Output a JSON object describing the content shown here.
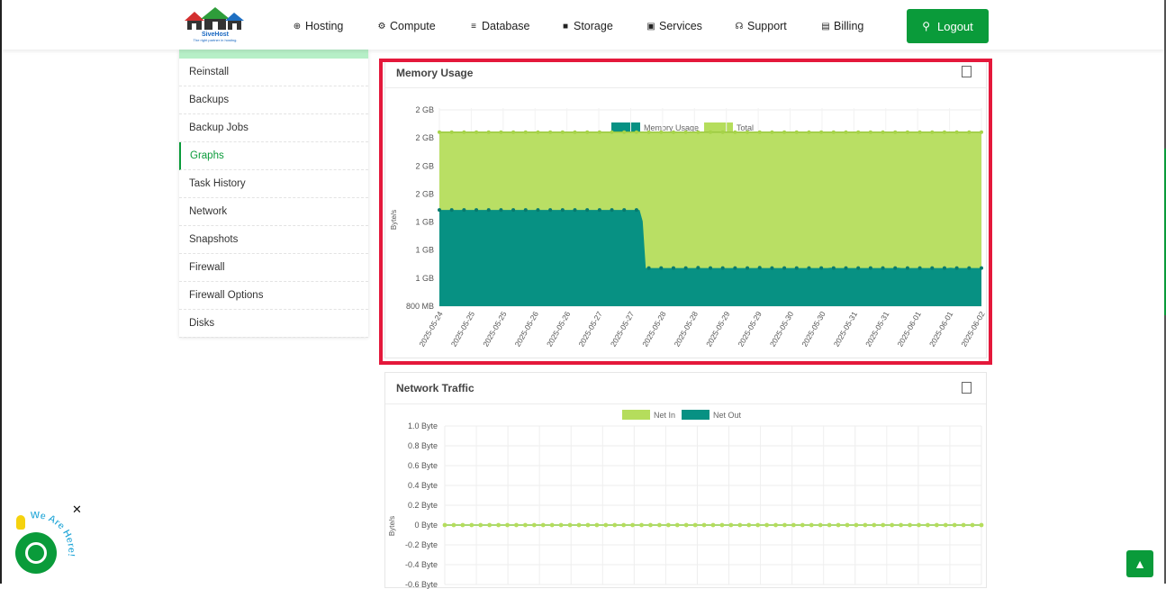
{
  "header": {
    "logo_name": "SiveHost",
    "logo_tagline": "The right partner in hosting.",
    "nav": [
      {
        "label": "Hosting",
        "icon": "globe-icon"
      },
      {
        "label": "Compute",
        "icon": "gear-icon"
      },
      {
        "label": "Database",
        "icon": "database-icon"
      },
      {
        "label": "Storage",
        "icon": "box-icon"
      },
      {
        "label": "Services",
        "icon": "gift-icon"
      },
      {
        "label": "Support",
        "icon": "headset-icon"
      },
      {
        "label": "Billing",
        "icon": "invoice-icon"
      }
    ],
    "logout_label": "Logout"
  },
  "sidebar": {
    "items": [
      {
        "label": "Reinstall",
        "active": false
      },
      {
        "label": "Backups",
        "active": false
      },
      {
        "label": "Backup Jobs",
        "active": false
      },
      {
        "label": "Graphs",
        "active": true
      },
      {
        "label": "Task History",
        "active": false
      },
      {
        "label": "Network",
        "active": false
      },
      {
        "label": "Snapshots",
        "active": false
      },
      {
        "label": "Firewall",
        "active": false
      },
      {
        "label": "Firewall Options",
        "active": false
      },
      {
        "label": "Disks",
        "active": false
      }
    ]
  },
  "colors": {
    "brand_green": "#0a9b3a",
    "memory_usage": "#079183",
    "total": "#b5dd5c",
    "highlight": "#e4183b"
  },
  "memory_panel": {
    "title": "Memory Usage"
  },
  "network_panel": {
    "title": "Network Traffic"
  },
  "chat": {
    "caption": "We Are Here!"
  },
  "chart_data": [
    {
      "type": "area",
      "ylabel": "Byte/s",
      "y_tick_labels": [
        "2 GB",
        "2 GB",
        "2 GB",
        "2 GB",
        "1 GB",
        "1 GB",
        "1 GB",
        "800 MB"
      ],
      "x_tick_labels": [
        "2025-05-24",
        "2025-05-25",
        "2025-05-25",
        "2025-05-26",
        "2025-05-26",
        "2025-05-27",
        "2025-05-27",
        "2025-05-28",
        "2025-05-28",
        "2025-05-29",
        "2025-05-29",
        "2025-05-30",
        "2025-05-30",
        "2025-05-31",
        "2025-05-31",
        "2025-06-01",
        "2025-06-01",
        "2025-06-02"
      ],
      "legend": "top",
      "grid": true,
      "ylim_mb": [
        800,
        2200
      ],
      "series": [
        {
          "name": "Memory Usage",
          "color": "#079183",
          "values_mb": [
            1480,
            1480,
            1480,
            1480,
            1480,
            1480,
            1480,
            1480,
            1480,
            1480,
            1480,
            1480,
            1480,
            1480,
            1480,
            1480,
            1480,
            1480,
            1480,
            1480,
            1480,
            1480,
            1480,
            1480,
            1480,
            1480,
            1480,
            1480,
            1480,
            1480,
            1480,
            1480,
            1480,
            1480,
            1480,
            1480,
            1480,
            1480,
            1480,
            1480,
            1480,
            1480,
            1480,
            1480,
            1480,
            1480,
            1480,
            1480,
            1480,
            1480,
            1480,
            1480,
            1480,
            1480,
            1480,
            1480,
            1480,
            1480,
            1480,
            1480,
            1480,
            1480,
            1480,
            1480,
            1480,
            1480,
            1400,
            1070,
            1070,
            1070,
            1070,
            1070,
            1070,
            1070,
            1070,
            1070,
            1070,
            1070,
            1070,
            1070,
            1070,
            1070,
            1070,
            1070,
            1072,
            1070,
            1070,
            1070,
            1070,
            1070,
            1070,
            1070,
            1070,
            1070,
            1070,
            1070,
            1070,
            1070,
            1070,
            1070,
            1070,
            1070,
            1070,
            1070,
            1072,
            1070,
            1070,
            1070,
            1070,
            1070,
            1070,
            1070,
            1070,
            1070,
            1070,
            1070,
            1070,
            1070,
            1070,
            1070,
            1070,
            1070,
            1070,
            1070,
            1070,
            1070,
            1070,
            1072,
            1070,
            1070,
            1070,
            1070,
            1070,
            1070,
            1070,
            1070,
            1070,
            1070,
            1070,
            1070,
            1070,
            1070,
            1070,
            1070,
            1070,
            1070,
            1070,
            1070,
            1070,
            1072,
            1070,
            1070,
            1070,
            1070,
            1070,
            1070,
            1070,
            1070,
            1070,
            1070,
            1070,
            1070,
            1070,
            1070,
            1070,
            1070,
            1072,
            1070,
            1070,
            1070,
            1070,
            1070,
            1070,
            1070,
            1070,
            1070,
            1070
          ]
        },
        {
          "name": "Total",
          "color": "#b5dd5c",
          "values_mb": [
            2030
          ]
        }
      ]
    },
    {
      "type": "line",
      "ylabel": "Byte/s",
      "y_tick_labels": [
        "1.0 Byte",
        "0.8 Byte",
        "0.6 Byte",
        "0.4 Byte",
        "0.2 Byte",
        "0 Byte",
        "-0.2 Byte",
        "-0.4 Byte",
        "-0.6 Byte"
      ],
      "ylim": [
        -0.6,
        1.0
      ],
      "legend": "top",
      "grid": true,
      "series": [
        {
          "name": "Net In",
          "color": "#b5dd5c",
          "value": 0
        },
        {
          "name": "Net Out",
          "color": "#079183",
          "value": 0
        }
      ]
    }
  ]
}
